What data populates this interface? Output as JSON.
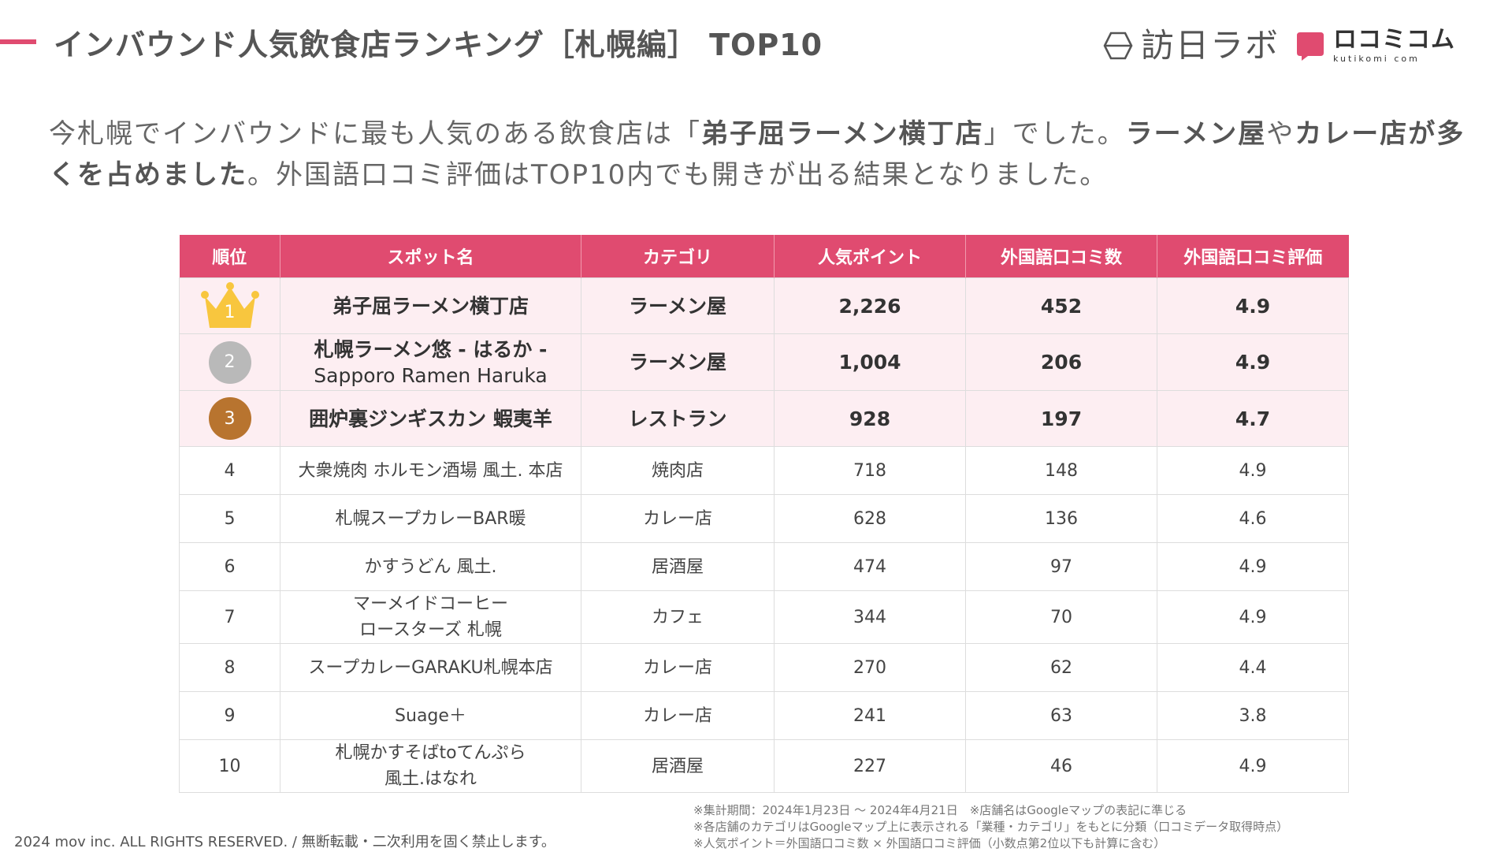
{
  "title": "インバウンド人気飲食店ランキング［札幌編］ TOP10",
  "logos": {
    "houjin": "訪日ラボ",
    "kutikomi": "ロコミコム",
    "kutikomi_sub": "kutikomi com"
  },
  "lead": {
    "t1": "今札幌でインバウンドに最も人気のある飲食店は「",
    "b1": "弟子屈ラーメン横丁店",
    "t2": "」でした。",
    "b2": "ラーメン屋",
    "t3": "や",
    "b3": "カレー店が多くを占めました",
    "t4": "。外国語口コミ評価はTOP10内でも開きが出る結果となりました。"
  },
  "table": {
    "headers": [
      "順位",
      "スポット名",
      "カテゴリ",
      "人気ポイント",
      "外国語口コミ数",
      "外国語口コミ評価"
    ],
    "rows": [
      {
        "rank": "1",
        "name": "弟子屈ラーメン横丁店",
        "name2": "",
        "category": "ラーメン屋",
        "points": "2,226",
        "reviews": "452",
        "rating": "4.9"
      },
      {
        "rank": "2",
        "name": "札幌ラーメン悠 - はるか -",
        "name2": "Sapporo Ramen Haruka",
        "category": "ラーメン屋",
        "points": "1,004",
        "reviews": "206",
        "rating": "4.9"
      },
      {
        "rank": "3",
        "name": "囲炉裏ジンギスカン 蝦夷羊",
        "name2": "",
        "category": "レストラン",
        "points": "928",
        "reviews": "197",
        "rating": "4.7"
      },
      {
        "rank": "4",
        "name": "大衆焼肉 ホルモン酒場 風土. 本店",
        "name2": "",
        "category": "焼肉店",
        "points": "718",
        "reviews": "148",
        "rating": "4.9"
      },
      {
        "rank": "5",
        "name": "札幌スープカレーBAR暖",
        "name2": "",
        "category": "カレー店",
        "points": "628",
        "reviews": "136",
        "rating": "4.6"
      },
      {
        "rank": "6",
        "name": "かすうどん 風土.",
        "name2": "",
        "category": "居酒屋",
        "points": "474",
        "reviews": "97",
        "rating": "4.9"
      },
      {
        "rank": "7",
        "name": "マーメイドコーヒー",
        "name2": "ロースターズ 札幌",
        "category": "カフェ",
        "points": "344",
        "reviews": "70",
        "rating": "4.9"
      },
      {
        "rank": "8",
        "name": "スープカレーGARAKU札幌本店",
        "name2": "",
        "category": "カレー店",
        "points": "270",
        "reviews": "62",
        "rating": "4.4"
      },
      {
        "rank": "9",
        "name": "Suage＋",
        "name2": "",
        "category": "カレー店",
        "points": "241",
        "reviews": "63",
        "rating": "3.8"
      },
      {
        "rank": "10",
        "name": "札幌かすそばtoてんぷら",
        "name2": "風土.はなれ",
        "category": "居酒屋",
        "points": "227",
        "reviews": "46",
        "rating": "4.9"
      }
    ]
  },
  "notes": [
    "※集計期間：2024年1月23日 〜 2024年4月21日　※店舗名はGoogleマップの表記に準じる",
    "※各店舗のカテゴリはGoogleマップ上に表示される「業種・カテゴリ」をもとに分類（口コミデータ取得時点）",
    "※人気ポイント＝外国語口コミ数 × 外国語口コミ評価（小数点第2位以下も計算に含む）"
  ],
  "copyright": "2024 mov inc. ALL RIGHTS RESERVED. / 無断転載・二次利用を固く禁止します。",
  "colors": {
    "accent": "#e04b70",
    "top3_row": "#fdeef2",
    "silver": "#b9b9b9",
    "bronze": "#b8742f",
    "gold": "#f8c63e",
    "logo_mark": "#e04b70"
  }
}
